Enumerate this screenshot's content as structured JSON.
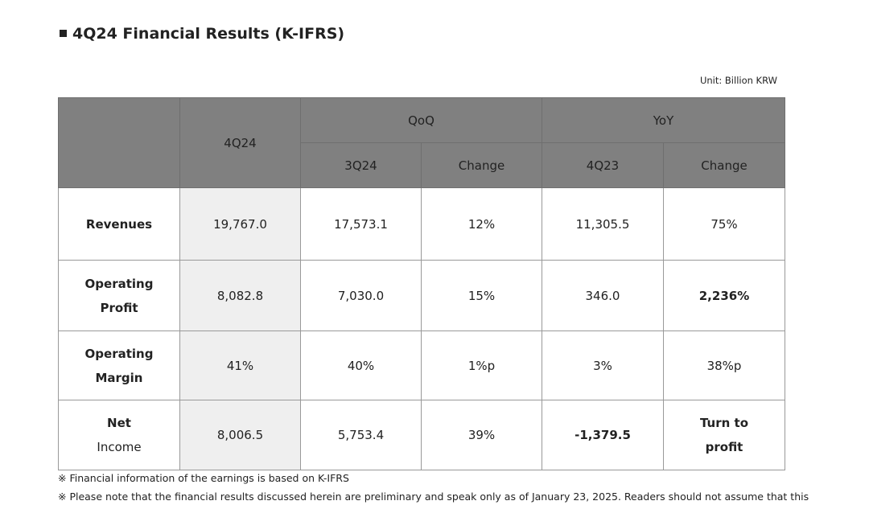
{
  "header": {
    "title": "4Q24 Financial Results (K-IFRS)",
    "unit": "Unit: Billion KRW"
  },
  "table": {
    "head": {
      "current": "4Q24",
      "qoq": "QoQ",
      "yoy": "YoY",
      "sub": [
        "3Q24",
        "Change",
        "4Q23",
        "Change"
      ]
    },
    "rows": [
      {
        "label": [
          "Revenues"
        ],
        "cells": [
          "19,767.0",
          "17,573.1",
          "12%",
          "11,305.5",
          "75%"
        ]
      },
      {
        "label": [
          "Operating",
          "Profit"
        ],
        "cells": [
          "8,082.8",
          "7,030.0",
          "15%",
          "346.0",
          "2,236%"
        ]
      },
      {
        "label": [
          "Operating",
          "Margin"
        ],
        "cells": [
          "41%",
          "40%",
          "1%p",
          "3%",
          "38%p"
        ]
      },
      {
        "label": [
          "Net",
          "Income"
        ],
        "cells": [
          "8,006.5",
          "5,753.4",
          "39%",
          "-1,379.5",
          [
            "Turn to",
            "profit"
          ]
        ]
      }
    ]
  },
  "footnotes": [
    "※ Financial information of the earnings is based on K-IFRS",
    "※ Please note that the financial results discussed herein are preliminary and speak only as of January 23, 2025. Readers should not assume that this"
  ]
}
